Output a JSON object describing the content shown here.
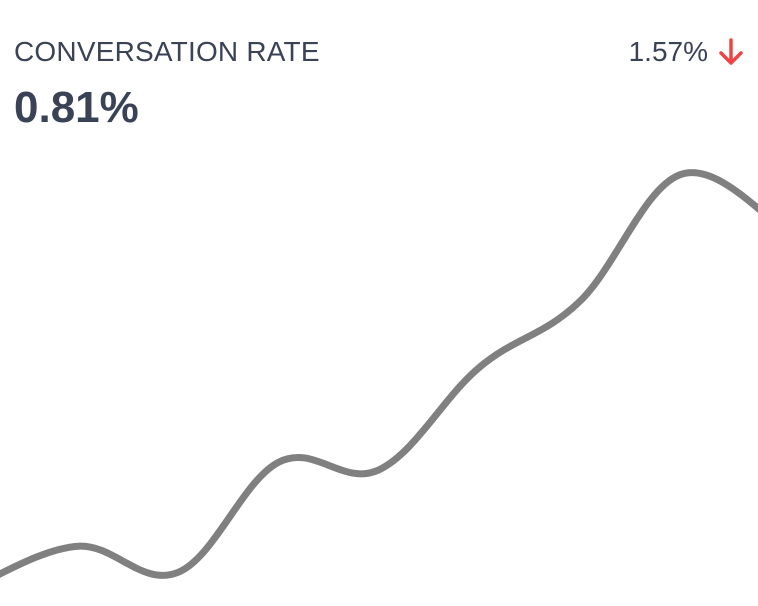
{
  "metric": {
    "label": "CONVERSATION RATE",
    "value": "0.81%"
  },
  "change": {
    "value": "1.57%",
    "direction": "down",
    "icon": "arrow-down-icon",
    "color": "#ef4444"
  },
  "colors": {
    "text": "#3a4255",
    "line": "#808080"
  },
  "chart_data": {
    "type": "line",
    "x": [
      0,
      1,
      2,
      3,
      4,
      5,
      6,
      7,
      8
    ],
    "series": [
      {
        "values": [
          0.2,
          0.45,
          0.28,
          1.0,
          0.95,
          1.62,
          2.05,
          2.88,
          2.55
        ]
      }
    ],
    "ylim": [
      0,
      3.5
    ],
    "grid": false,
    "legend": "none"
  }
}
